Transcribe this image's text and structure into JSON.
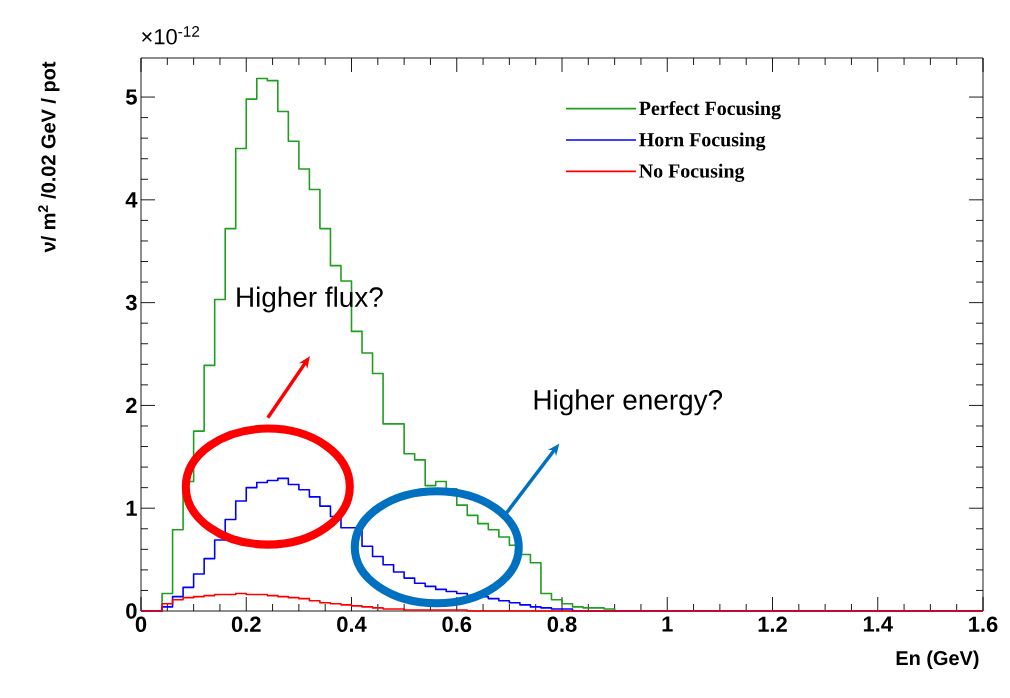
{
  "chart_data": {
    "type": "histogram",
    "xlabel": "En (GeV)",
    "ylabel": "ν/ m$^{2}$ /0.02 GeV / pot",
    "annotations": [
      "×10$^{-12}$",
      "Higher flux?",
      "Higher energy?"
    ],
    "bins": [
      0,
      0.02,
      0.04,
      0.06,
      0.08,
      0.1,
      0.12,
      0.14,
      0.16,
      0.18,
      0.2,
      0.22,
      0.24,
      0.26,
      0.28,
      0.3,
      0.32,
      0.34,
      0.36,
      0.38,
      0.4,
      0.42,
      0.44,
      0.46,
      0.48,
      0.5,
      0.52,
      0.54,
      0.56,
      0.58,
      0.6,
      0.62,
      0.64,
      0.66,
      0.68,
      0.7,
      0.72,
      0.74,
      0.76,
      0.78,
      0.8,
      0.82,
      0.84,
      0.86,
      0.88,
      0.9,
      0.92,
      0.94,
      0.96,
      0.98,
      1,
      1.02,
      1.04,
      1.06,
      1.08,
      1.1,
      1.12,
      1.14,
      1.16,
      1.18,
      1.2,
      1.22,
      1.24,
      1.26,
      1.28,
      1.3,
      1.32,
      1.34,
      1.36,
      1.38,
      1.4,
      1.42,
      1.44,
      1.46,
      1.48,
      1.5,
      1.52,
      1.54,
      1.56,
      1.58,
      1.6
    ],
    "series": [
      {
        "name": "Perfect Focusing",
        "color": "#1f9e1f",
        "values": [
          0,
          0,
          0.17,
          0.79,
          1.26,
          1.75,
          2.39,
          3.03,
          3.72,
          4.5,
          4.98,
          5.18,
          5.16,
          4.86,
          4.57,
          4.3,
          4.1,
          3.72,
          3.36,
          3.21,
          2.72,
          2.51,
          2.31,
          1.82,
          1.82,
          1.53,
          1.47,
          1.22,
          1.26,
          1.19,
          1.03,
          0.93,
          0.85,
          0.79,
          0.72,
          0.64,
          0.55,
          0.47,
          0.17,
          0.11,
          0.07,
          0.04,
          0.03,
          0.03,
          0.02,
          0,
          0,
          0,
          0,
          0,
          0,
          0,
          0,
          0,
          0,
          0,
          0,
          0,
          0,
          0,
          0,
          0,
          0,
          0,
          0,
          0,
          0,
          0,
          0,
          0,
          0,
          0,
          0,
          0,
          0,
          0,
          0,
          0,
          0,
          0
        ]
      },
      {
        "name": "Horn Focusing",
        "color": "#0000ff",
        "values": [
          0,
          0,
          0.04,
          0.14,
          0.23,
          0.36,
          0.51,
          0.69,
          0.89,
          1.07,
          1.2,
          1.25,
          1.27,
          1.29,
          1.23,
          1.18,
          1.11,
          1.02,
          0.92,
          0.81,
          0.81,
          0.63,
          0.53,
          0.45,
          0.38,
          0.32,
          0.27,
          0.24,
          0.21,
          0.19,
          0.17,
          0.15,
          0.14,
          0.12,
          0.1,
          0.08,
          0.06,
          0.04,
          0.03,
          0.02,
          0.02,
          0,
          0,
          0,
          0,
          0,
          0,
          0,
          0,
          0,
          0,
          0,
          0,
          0,
          0,
          0,
          0,
          0,
          0,
          0,
          0,
          0,
          0,
          0,
          0,
          0,
          0,
          0,
          0,
          0,
          0,
          0,
          0,
          0,
          0,
          0,
          0,
          0,
          0,
          0
        ]
      },
      {
        "name": "No Focusing",
        "color": "#ff0000",
        "values": [
          0,
          0,
          0.07,
          0.11,
          0.13,
          0.14,
          0.15,
          0.16,
          0.16,
          0.17,
          0.16,
          0.16,
          0.15,
          0.14,
          0.13,
          0.12,
          0.1,
          0.08,
          0.07,
          0.06,
          0.05,
          0.04,
          0.03,
          0.02,
          0.02,
          0.01,
          0.01,
          0.01,
          0.01,
          0.01,
          0.01,
          0,
          0,
          0,
          0,
          0,
          0,
          0,
          0,
          0,
          0,
          0,
          0,
          0,
          0,
          0,
          0,
          0,
          0,
          0,
          0,
          0,
          0,
          0,
          0,
          0,
          0,
          0,
          0,
          0,
          0,
          0,
          0,
          0,
          0,
          0,
          0,
          0,
          0,
          0,
          0,
          0,
          0,
          0,
          0,
          0,
          0,
          0,
          0,
          0
        ]
      }
    ],
    "xlim": [
      0,
      1.6
    ],
    "ylim": [
      0,
      5.38
    ],
    "xticks": [
      0,
      0.2,
      0.4,
      0.6,
      0.8,
      1,
      1.2,
      1.4,
      1.6
    ],
    "yticks": [
      0,
      1,
      2,
      3,
      4,
      5
    ],
    "legend": "top right"
  }
}
